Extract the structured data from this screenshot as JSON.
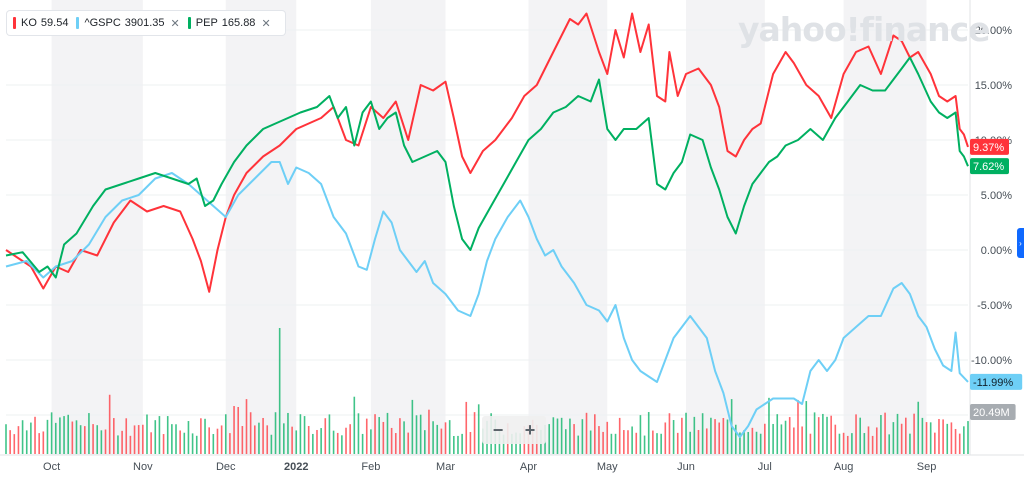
{
  "legend": [
    {
      "symbol": "KO",
      "price": "59.54",
      "color": "#ff333a"
    },
    {
      "symbol": "^GSPC",
      "price": "3901.35",
      "color": "#6ecff6"
    },
    {
      "symbol": "PEP",
      "price": "165.88",
      "color": "#00b061"
    }
  ],
  "watermark": "yahoo!finance",
  "zoom": {
    "out": "−",
    "in": "+"
  },
  "side_tab_icon": "chevron-right-icon",
  "chart_data": {
    "type": "line",
    "y_tick_labels": [
      "20.00%",
      "15.00%",
      "10.00%",
      "5.00%",
      "0.00%",
      "-5.00%",
      "-10.00%",
      "-15.00%"
    ],
    "y_ticks": [
      20,
      15,
      10,
      5,
      0,
      -5,
      -10,
      -15
    ],
    "ylim": [
      -18,
      22
    ],
    "x_tick_labels": [
      "Oct",
      "Nov",
      "Dec",
      "2022",
      "Feb",
      "Mar",
      "Apr",
      "May",
      "Jun",
      "Jul",
      "Aug",
      "Sep"
    ],
    "x_ticks": [
      11,
      33,
      53,
      70,
      88,
      106,
      126,
      145,
      164,
      183,
      202,
      222
    ],
    "x_range": [
      0,
      232
    ],
    "shaded_bands": [
      [
        11,
        33
      ],
      [
        53,
        70
      ],
      [
        88,
        106
      ],
      [
        126,
        145
      ],
      [
        164,
        183
      ],
      [
        202,
        222
      ]
    ],
    "series": [
      {
        "name": "KO",
        "color": "#ff333a",
        "end_label": "9.37%",
        "points": [
          [
            0,
            0
          ],
          [
            6,
            -1.5
          ],
          [
            9,
            -3.5
          ],
          [
            12,
            -1.5
          ],
          [
            15,
            -2
          ],
          [
            18,
            0
          ],
          [
            22,
            -0.5
          ],
          [
            26,
            2.5
          ],
          [
            30,
            4.5
          ],
          [
            34,
            3.5
          ],
          [
            38,
            4
          ],
          [
            42,
            3.5
          ],
          [
            45,
            1
          ],
          [
            47,
            -1
          ],
          [
            49,
            -3.8
          ],
          [
            51,
            0
          ],
          [
            53,
            3
          ],
          [
            55,
            5
          ],
          [
            58,
            7
          ],
          [
            62,
            8.5
          ],
          [
            66,
            9.5
          ],
          [
            70,
            11
          ],
          [
            73,
            11.5
          ],
          [
            76,
            12
          ],
          [
            79,
            13
          ],
          [
            82,
            10
          ],
          [
            85,
            9.5
          ],
          [
            88,
            13
          ],
          [
            91,
            12
          ],
          [
            94,
            13.5
          ],
          [
            97,
            10
          ],
          [
            100,
            15
          ],
          [
            103,
            14.5
          ],
          [
            106,
            15.3
          ],
          [
            108,
            12
          ],
          [
            110,
            8.5
          ],
          [
            112,
            7
          ],
          [
            115,
            9
          ],
          [
            118,
            10
          ],
          [
            122,
            12
          ],
          [
            125,
            14
          ],
          [
            128,
            15
          ],
          [
            132,
            18
          ],
          [
            136,
            21
          ],
          [
            138,
            20.5
          ],
          [
            140,
            21.5
          ],
          [
            143,
            18
          ],
          [
            145,
            16
          ],
          [
            147,
            20
          ],
          [
            149,
            17.5
          ],
          [
            151,
            21.5
          ],
          [
            153,
            18
          ],
          [
            155,
            20.5
          ],
          [
            157,
            14
          ],
          [
            159,
            13.5
          ],
          [
            160,
            18
          ],
          [
            162,
            14
          ],
          [
            164,
            16
          ],
          [
            167,
            16.5
          ],
          [
            170,
            15
          ],
          [
            172,
            13
          ],
          [
            174,
            9
          ],
          [
            176,
            8.5
          ],
          [
            178,
            10
          ],
          [
            180,
            11
          ],
          [
            182,
            11.5
          ],
          [
            185,
            16
          ],
          [
            188,
            18
          ],
          [
            190,
            17
          ],
          [
            193,
            15
          ],
          [
            196,
            14
          ],
          [
            199,
            12
          ],
          [
            202,
            16
          ],
          [
            205,
            18
          ],
          [
            208,
            18.5
          ],
          [
            211,
            16
          ],
          [
            214,
            19.5
          ],
          [
            216,
            19
          ],
          [
            218,
            17.5
          ],
          [
            220,
            18
          ],
          [
            223,
            16
          ],
          [
            225,
            14
          ],
          [
            227,
            13.5
          ],
          [
            229,
            14
          ],
          [
            230,
            11
          ],
          [
            231,
            10.5
          ],
          [
            232,
            9.37
          ]
        ]
      },
      {
        "name": "^GSPC",
        "color": "#6ecff6",
        "end_label": "-11.99%",
        "points": [
          [
            0,
            -1.5
          ],
          [
            5,
            -1
          ],
          [
            9,
            -2.5
          ],
          [
            12,
            -1.5
          ],
          [
            16,
            -1
          ],
          [
            20,
            0.5
          ],
          [
            24,
            3
          ],
          [
            28,
            4.5
          ],
          [
            32,
            5
          ],
          [
            36,
            6.5
          ],
          [
            40,
            7
          ],
          [
            44,
            6
          ],
          [
            47,
            5
          ],
          [
            50,
            4
          ],
          [
            53,
            3
          ],
          [
            56,
            5
          ],
          [
            60,
            6.5
          ],
          [
            64,
            8
          ],
          [
            66,
            8
          ],
          [
            68,
            6
          ],
          [
            70,
            7.5
          ],
          [
            73,
            7
          ],
          [
            76,
            6
          ],
          [
            79,
            3
          ],
          [
            82,
            1.5
          ],
          [
            85,
            -1.5
          ],
          [
            87,
            -1.8
          ],
          [
            89,
            1
          ],
          [
            91,
            3.5
          ],
          [
            93,
            2.5
          ],
          [
            95,
            0
          ],
          [
            97,
            -1
          ],
          [
            99,
            -2
          ],
          [
            101,
            -1
          ],
          [
            103,
            -3
          ],
          [
            106,
            -4
          ],
          [
            109,
            -5.5
          ],
          [
            112,
            -6
          ],
          [
            114,
            -4
          ],
          [
            116,
            -1
          ],
          [
            118,
            1
          ],
          [
            121,
            3
          ],
          [
            124,
            4.5
          ],
          [
            126,
            3
          ],
          [
            128,
            1
          ],
          [
            130,
            -0.5
          ],
          [
            132,
            0
          ],
          [
            134,
            -1.5
          ],
          [
            137,
            -3
          ],
          [
            140,
            -5
          ],
          [
            143,
            -5.5
          ],
          [
            145,
            -6.5
          ],
          [
            147,
            -5
          ],
          [
            149,
            -8
          ],
          [
            151,
            -10
          ],
          [
            153,
            -11
          ],
          [
            155,
            -11.5
          ],
          [
            157,
            -12
          ],
          [
            159,
            -10
          ],
          [
            161,
            -8
          ],
          [
            163,
            -7
          ],
          [
            165,
            -6
          ],
          [
            167,
            -7
          ],
          [
            169,
            -8
          ],
          [
            171,
            -11
          ],
          [
            173,
            -13
          ],
          [
            175,
            -16
          ],
          [
            177,
            -17
          ],
          [
            179,
            -16
          ],
          [
            181,
            -14.5
          ],
          [
            183,
            -14
          ],
          [
            185,
            -13.5
          ],
          [
            188,
            -13.5
          ],
          [
            190,
            -13.5
          ],
          [
            192,
            -14
          ],
          [
            194,
            -11
          ],
          [
            196,
            -10
          ],
          [
            198,
            -11
          ],
          [
            200,
            -10
          ],
          [
            202,
            -8
          ],
          [
            205,
            -7
          ],
          [
            208,
            -6
          ],
          [
            211,
            -6
          ],
          [
            214,
            -3.5
          ],
          [
            216,
            -3
          ],
          [
            218,
            -4
          ],
          [
            220,
            -6
          ],
          [
            222,
            -7
          ],
          [
            224,
            -9
          ],
          [
            226,
            -10.5
          ],
          [
            228,
            -11
          ],
          [
            229,
            -7.5
          ],
          [
            230,
            -11.2
          ],
          [
            232,
            -11.99
          ]
        ]
      },
      {
        "name": "PEP",
        "color": "#00b061",
        "end_label": "7.62%",
        "points": [
          [
            0,
            -0.5
          ],
          [
            4,
            -0.2
          ],
          [
            8,
            -2
          ],
          [
            10,
            -1.5
          ],
          [
            12,
            -2.5
          ],
          [
            14,
            0.5
          ],
          [
            17,
            1.5
          ],
          [
            21,
            4
          ],
          [
            24,
            5.5
          ],
          [
            28,
            6
          ],
          [
            32,
            6.5
          ],
          [
            36,
            7
          ],
          [
            40,
            6.5
          ],
          [
            44,
            6
          ],
          [
            46,
            6.5
          ],
          [
            48,
            4
          ],
          [
            50,
            4.5
          ],
          [
            52,
            6
          ],
          [
            55,
            8
          ],
          [
            58,
            9.5
          ],
          [
            62,
            11
          ],
          [
            65,
            11.5
          ],
          [
            68,
            12
          ],
          [
            71,
            12.5
          ],
          [
            75,
            13
          ],
          [
            78,
            14
          ],
          [
            80,
            12
          ],
          [
            82,
            13
          ],
          [
            84,
            9.5
          ],
          [
            86,
            12.5
          ],
          [
            88,
            13.5
          ],
          [
            90,
            11
          ],
          [
            92,
            12
          ],
          [
            94,
            12.5
          ],
          [
            96,
            9.5
          ],
          [
            98,
            8
          ],
          [
            101,
            8.5
          ],
          [
            104,
            9
          ],
          [
            106,
            8
          ],
          [
            108,
            4
          ],
          [
            110,
            1
          ],
          [
            112,
            0
          ],
          [
            114,
            2
          ],
          [
            117,
            4
          ],
          [
            120,
            6
          ],
          [
            123,
            8
          ],
          [
            126,
            10
          ],
          [
            129,
            11
          ],
          [
            132,
            12.5
          ],
          [
            135,
            13
          ],
          [
            138,
            14
          ],
          [
            141,
            13.5
          ],
          [
            143,
            15.5
          ],
          [
            145,
            11
          ],
          [
            147,
            10
          ],
          [
            149,
            11
          ],
          [
            152,
            11
          ],
          [
            155,
            12
          ],
          [
            157,
            6
          ],
          [
            159,
            5.5
          ],
          [
            161,
            7
          ],
          [
            163,
            8
          ],
          [
            165,
            10.5
          ],
          [
            168,
            10
          ],
          [
            170,
            7.5
          ],
          [
            172,
            5.5
          ],
          [
            174,
            3
          ],
          [
            176,
            1.5
          ],
          [
            178,
            4
          ],
          [
            180,
            6
          ],
          [
            182,
            7
          ],
          [
            184,
            8
          ],
          [
            186,
            8.5
          ],
          [
            188,
            9.5
          ],
          [
            191,
            10
          ],
          [
            194,
            11
          ],
          [
            197,
            10
          ],
          [
            200,
            12
          ],
          [
            203,
            13.5
          ],
          [
            206,
            15
          ],
          [
            209,
            14.5
          ],
          [
            212,
            14.5
          ],
          [
            214,
            15.5
          ],
          [
            216,
            16.5
          ],
          [
            218,
            17.5
          ],
          [
            220,
            16
          ],
          [
            223,
            13.5
          ],
          [
            225,
            12.5
          ],
          [
            227,
            12
          ],
          [
            229,
            12.5
          ],
          [
            230,
            9
          ],
          [
            231,
            8.5
          ],
          [
            232,
            7.62
          ]
        ]
      }
    ],
    "volume_end_label": "20.49M"
  }
}
